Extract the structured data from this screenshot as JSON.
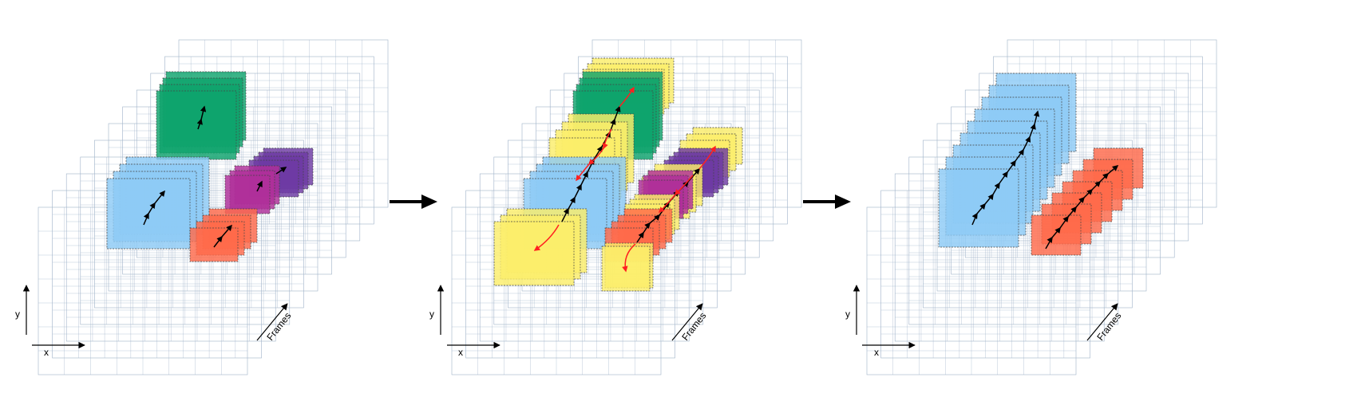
{
  "axis_labels": {
    "x": "x",
    "y": "y",
    "frames": "Frames"
  },
  "colors": {
    "grid": "#9fb2c8",
    "green": "#0fa36d",
    "blue": "#8ecbf5",
    "purple": "#6e3ba3",
    "magenta": "#b0309a",
    "red": "#ff6a4a",
    "yellow": "#fbee6a",
    "arrow_black": "#000000",
    "arrow_red": "#ff2020"
  },
  "panels": [
    {
      "name": "input-frames",
      "title": ""
    },
    {
      "name": "tracking-frames",
      "title": ""
    },
    {
      "name": "selected-frames",
      "title": ""
    }
  ]
}
